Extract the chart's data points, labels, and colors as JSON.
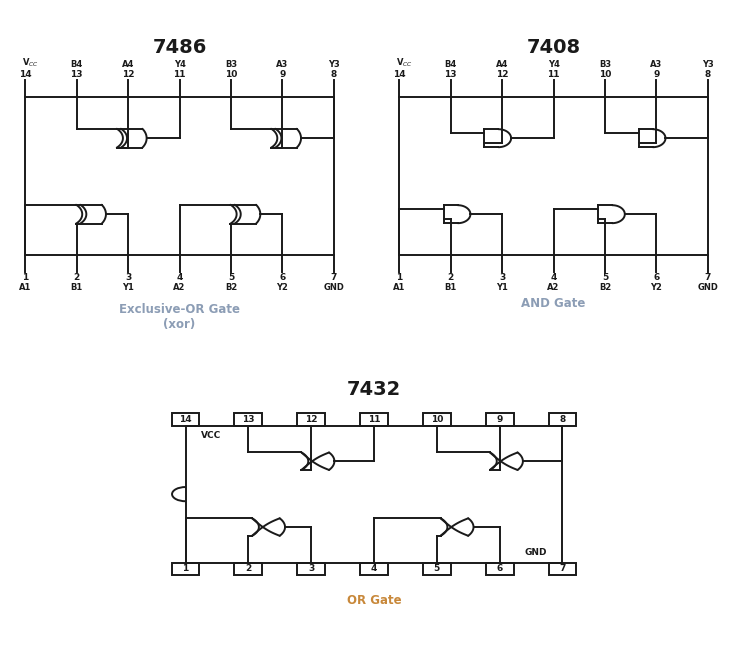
{
  "title_7486": "7486",
  "title_7408": "7408",
  "title_7432": "7432",
  "subtitle_7486": "Exclusive-OR Gate\n(xor)",
  "subtitle_7408": "AND Gate",
  "subtitle_7432": "OR Gate",
  "subtitle_color_7486": "#8c9db5",
  "subtitle_color_7408": "#8c9db5",
  "subtitle_color_7432": "#c8883a",
  "line_color": "#1a1a1a",
  "title_color": "#1a1a1a",
  "top_nums": [
    "14",
    "13",
    "12",
    "11",
    "10",
    "9",
    "8"
  ],
  "top_labels": [
    "VCC",
    "B4",
    "A4",
    "Y4",
    "B3",
    "A3",
    "Y3"
  ],
  "bot_nums": [
    "1",
    "2",
    "3",
    "4",
    "5",
    "6",
    "7"
  ],
  "bot_labels": [
    "A1",
    "B1",
    "Y1",
    "A2",
    "B2",
    "Y2",
    "GND"
  ]
}
